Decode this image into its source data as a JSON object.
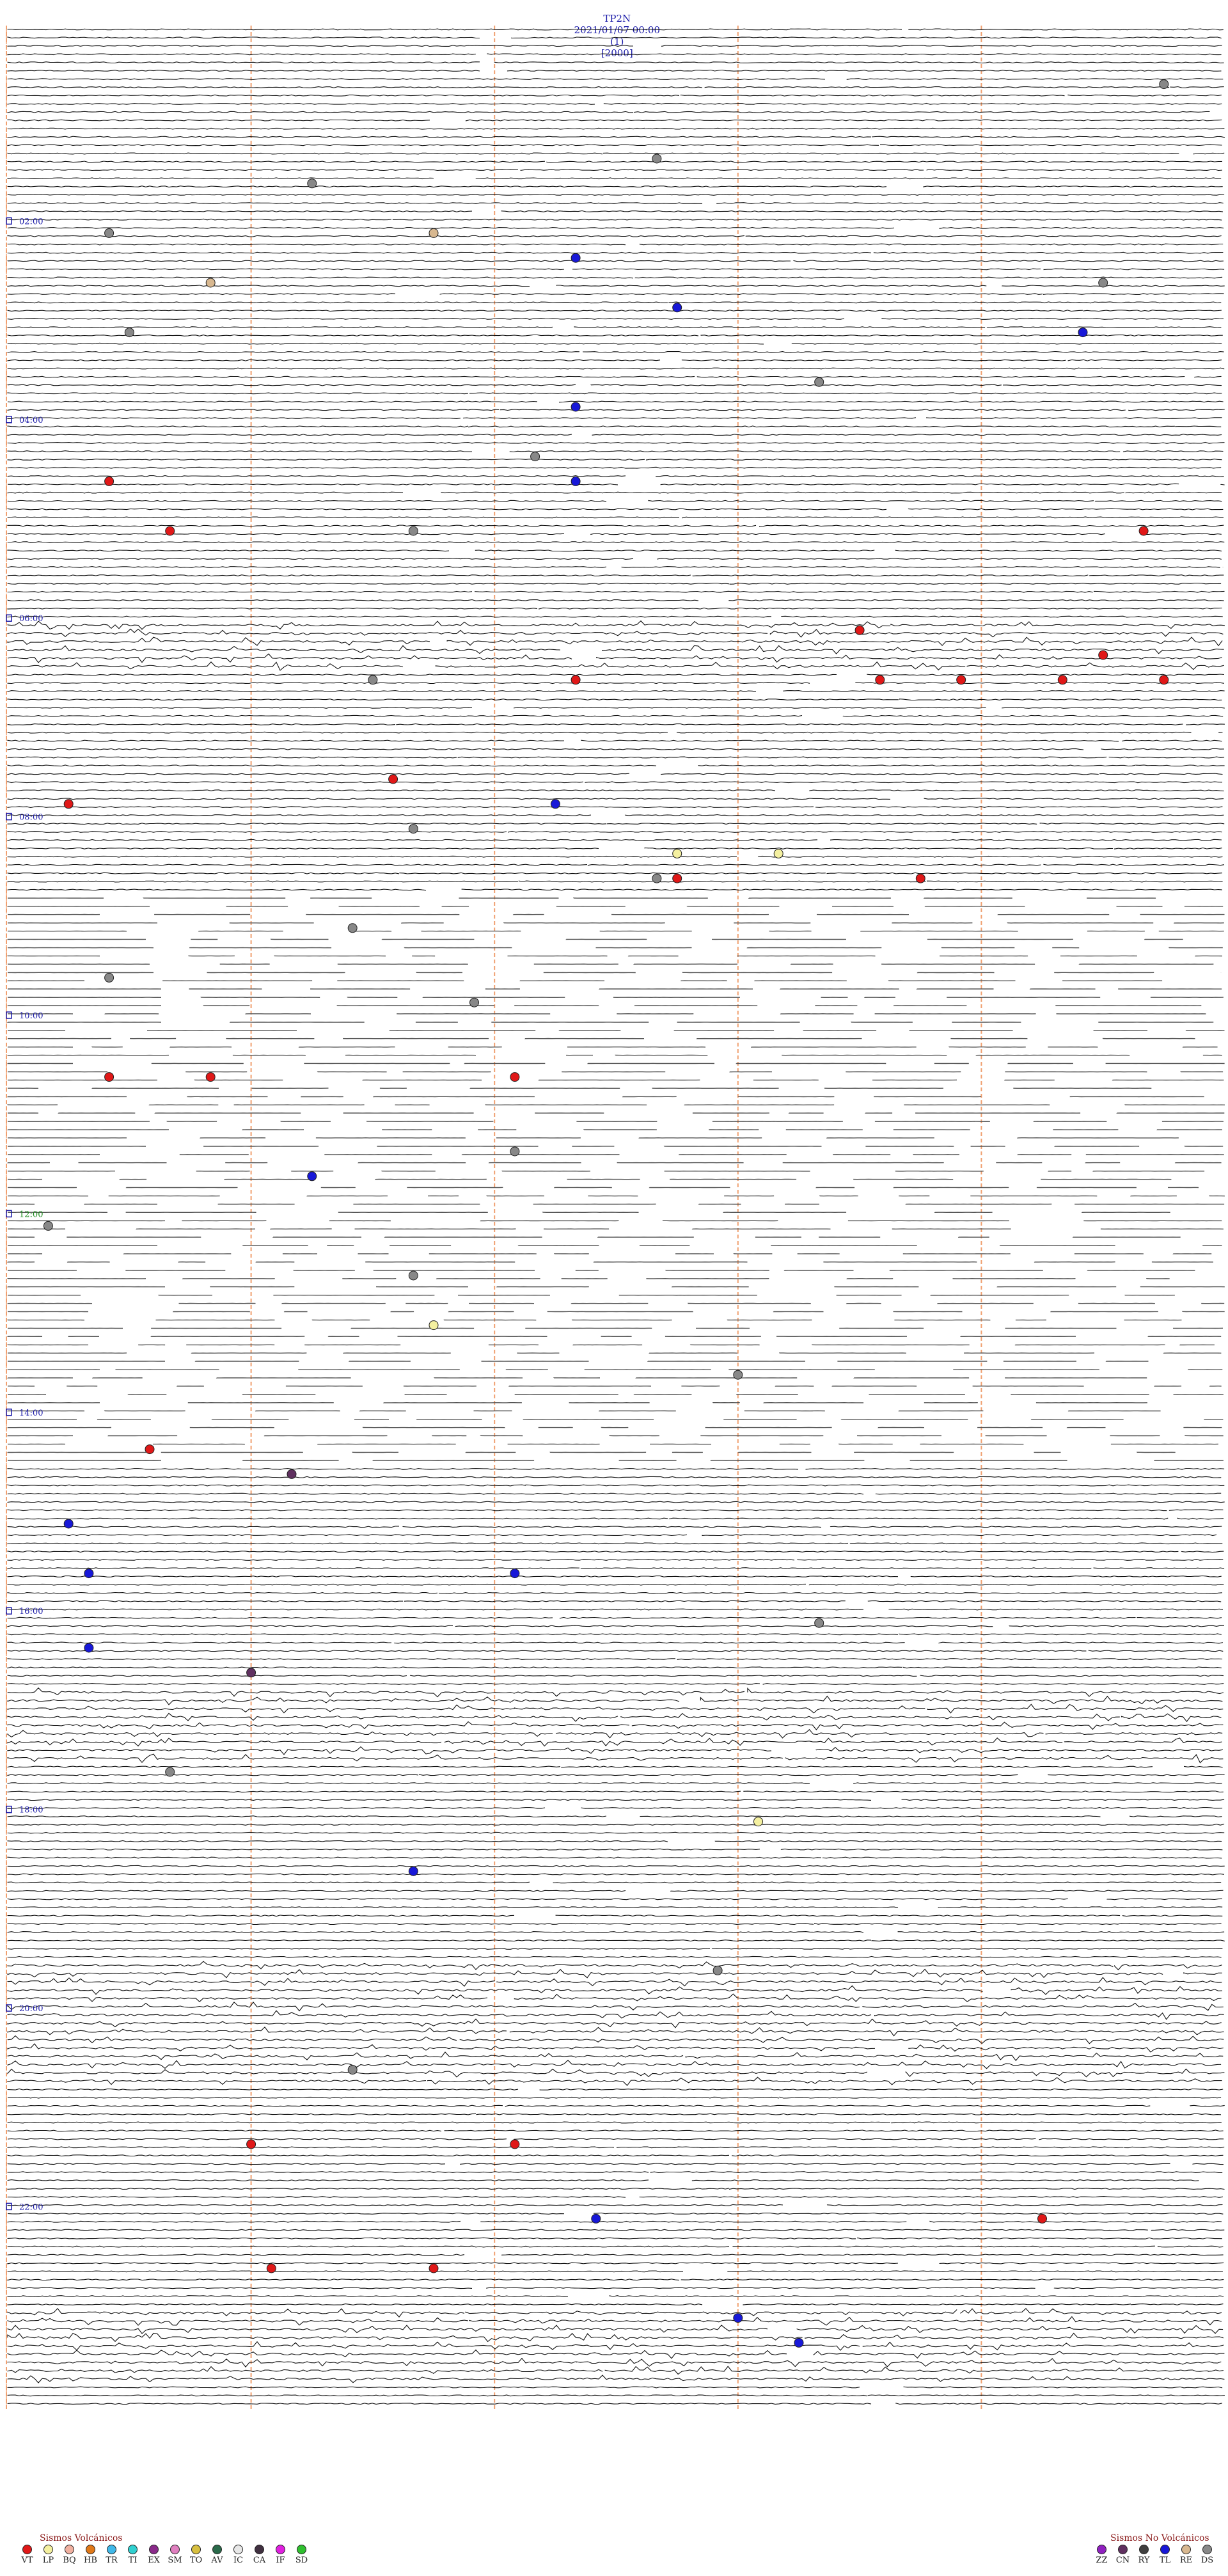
{
  "header": {
    "station": "TP2N",
    "datetime": "2021/01/07 00:00",
    "channel": "(1)",
    "scale": "[2000]"
  },
  "chart_data": {
    "type": "scatter",
    "title": "TP2N 2021/01/07 00:00 (1) [2000]",
    "description_note": "",
    "time_labels": [
      "02:00",
      "04:00",
      "06:00",
      "08:00",
      "10:00",
      "12:00",
      "14:00",
      "16:00",
      "18:00",
      "20:00",
      "22:00"
    ],
    "label_colors": {
      "default": "#1a1aa8",
      "12:00": "#1a8a1a"
    },
    "events": [
      {
        "h": 0.6,
        "m": 57,
        "type": "DS"
      },
      {
        "h": 1.3,
        "m": 32,
        "type": "DS"
      },
      {
        "h": 1.6,
        "m": 15,
        "type": "DS"
      },
      {
        "h": 2.0,
        "m": 5,
        "type": "DS"
      },
      {
        "h": 2.2,
        "m": 21,
        "type": "RE"
      },
      {
        "h": 2.3,
        "m": 28,
        "type": "TL"
      },
      {
        "h": 2.5,
        "m": 54,
        "type": "DS"
      },
      {
        "h": 2.6,
        "m": 10,
        "type": "RE"
      },
      {
        "h": 2.9,
        "m": 33,
        "type": "TL"
      },
      {
        "h": 3.1,
        "m": 6,
        "type": "DS"
      },
      {
        "h": 3.2,
        "m": 53,
        "type": "TL"
      },
      {
        "h": 3.5,
        "m": 40,
        "type": "DS"
      },
      {
        "h": 3.8,
        "m": 28,
        "type": "TL"
      },
      {
        "h": 4.4,
        "m": 26,
        "type": "DS"
      },
      {
        "h": 4.5,
        "m": 5,
        "type": "VT"
      },
      {
        "h": 4.7,
        "m": 28,
        "type": "TL"
      },
      {
        "h": 5.1,
        "m": 20,
        "type": "DS"
      },
      {
        "h": 5.2,
        "m": 8,
        "type": "VT"
      },
      {
        "h": 5.2,
        "m": 56,
        "type": "VT"
      },
      {
        "h": 6.0,
        "m": 42,
        "type": "VT"
      },
      {
        "h": 6.3,
        "m": 54,
        "type": "VT"
      },
      {
        "h": 6.6,
        "m": 28,
        "type": "VT"
      },
      {
        "h": 6.6,
        "m": 18,
        "type": "DS"
      },
      {
        "h": 6.6,
        "m": 43,
        "type": "VT"
      },
      {
        "h": 6.6,
        "m": 47,
        "type": "VT"
      },
      {
        "h": 6.6,
        "m": 52,
        "type": "VT"
      },
      {
        "h": 6.6,
        "m": 57,
        "type": "VT"
      },
      {
        "h": 7.5,
        "m": 19,
        "type": "VT"
      },
      {
        "h": 7.8,
        "m": 3,
        "type": "VT"
      },
      {
        "h": 7.8,
        "m": 27,
        "type": "TL"
      },
      {
        "h": 8.1,
        "m": 20,
        "type": "DS"
      },
      {
        "h": 8.3,
        "m": 33,
        "type": "LP"
      },
      {
        "h": 8.3,
        "m": 38,
        "type": "LP"
      },
      {
        "h": 8.5,
        "m": 32,
        "type": "DS"
      },
      {
        "h": 8.7,
        "m": 33,
        "type": "VT"
      },
      {
        "h": 8.7,
        "m": 45,
        "type": "VT"
      },
      {
        "h": 9.2,
        "m": 17,
        "type": "DS"
      },
      {
        "h": 9.6,
        "m": 5,
        "type": "DS"
      },
      {
        "h": 9.9,
        "m": 23,
        "type": "DS"
      },
      {
        "h": 10.5,
        "m": 5,
        "type": "VT"
      },
      {
        "h": 10.5,
        "m": 10,
        "type": "VT"
      },
      {
        "h": 10.5,
        "m": 25,
        "type": "VT"
      },
      {
        "h": 11.3,
        "m": 25,
        "type": "DS"
      },
      {
        "h": 11.6,
        "m": 15,
        "type": "TL"
      },
      {
        "h": 12.2,
        "m": 2,
        "type": "DS"
      },
      {
        "h": 12.5,
        "m": 20,
        "type": "DS"
      },
      {
        "h": 13.1,
        "m": 21,
        "type": "LP"
      },
      {
        "h": 13.6,
        "m": 36,
        "type": "DS"
      },
      {
        "h": 14.4,
        "m": 7,
        "type": "VT"
      },
      {
        "h": 14.6,
        "m": 14,
        "type": "CN"
      },
      {
        "h": 15.1,
        "m": 3,
        "type": "TL"
      },
      {
        "h": 15.5,
        "m": 4,
        "type": "TL"
      },
      {
        "h": 15.6,
        "m": 25,
        "type": "TL"
      },
      {
        "h": 16.1,
        "m": 40,
        "type": "DS"
      },
      {
        "h": 16.4,
        "m": 4,
        "type": "TL"
      },
      {
        "h": 16.6,
        "m": 12,
        "type": "CN"
      },
      {
        "h": 17.7,
        "m": 8,
        "type": "DS"
      },
      {
        "h": 18.1,
        "m": 37,
        "type": "LP"
      },
      {
        "h": 18.6,
        "m": 20,
        "type": "TL"
      },
      {
        "h": 19.7,
        "m": 35,
        "type": "DS"
      },
      {
        "h": 20.6,
        "m": 17,
        "type": "DS"
      },
      {
        "h": 21.3,
        "m": 12,
        "type": "VT"
      },
      {
        "h": 21.4,
        "m": 25,
        "type": "VT"
      },
      {
        "h": 22.0,
        "m": 29,
        "type": "TL"
      },
      {
        "h": 22.0,
        "m": 51,
        "type": "VT"
      },
      {
        "h": 22.5,
        "m": 13,
        "type": "VT"
      },
      {
        "h": 22.5,
        "m": 21,
        "type": "VT"
      },
      {
        "h": 23.1,
        "m": 36,
        "type": "TL"
      },
      {
        "h": 23.3,
        "m": 39,
        "type": "TL"
      }
    ]
  },
  "legend": {
    "volcanic_title": "Sismos Volcánicos",
    "volcanic": [
      {
        "code": "VT",
        "color": "#e01818"
      },
      {
        "code": "LP",
        "color": "#f4f0a0"
      },
      {
        "code": "BQ",
        "color": "#f0b0a0"
      },
      {
        "code": "HB",
        "color": "#e07818"
      },
      {
        "code": "TR",
        "color": "#40b8e8"
      },
      {
        "code": "TI",
        "color": "#30d0d0"
      },
      {
        "code": "EX",
        "color": "#8a2a8a"
      },
      {
        "code": "SM",
        "color": "#e080c0"
      },
      {
        "code": "TO",
        "color": "#d8c040"
      },
      {
        "code": "AV",
        "color": "#2a6a4a"
      },
      {
        "code": "IC",
        "color": "#e8e8e8"
      },
      {
        "code": "CA",
        "color": "#403040"
      },
      {
        "code": "IF",
        "color": "#e020e0"
      },
      {
        "code": "SD",
        "color": "#30c030"
      }
    ],
    "nonvolcanic_title": "Sismos No Volcánicos",
    "nonvolcanic": [
      {
        "code": "ZZ",
        "color": "#9020c0"
      },
      {
        "code": "CN",
        "color": "#603060"
      },
      {
        "code": "RY",
        "color": "#404040"
      },
      {
        "code": "TL",
        "color": "#1818d8"
      },
      {
        "code": "RE",
        "color": "#d8b890"
      },
      {
        "code": "DS",
        "color": "#888888"
      }
    ]
  }
}
